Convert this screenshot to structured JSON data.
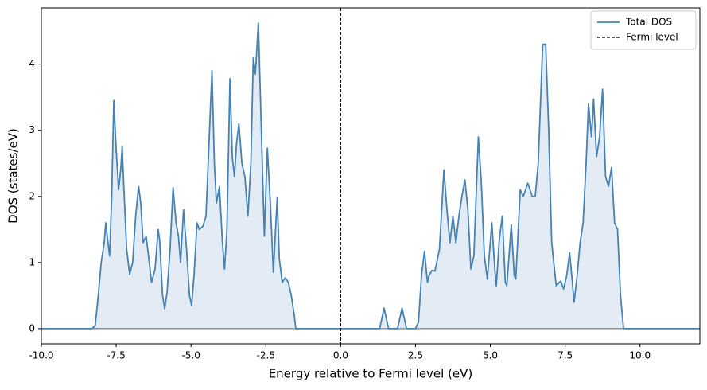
{
  "chart_data": {
    "type": "line",
    "xlabel": "Energy relative to Fermi level (eV)",
    "ylabel": "DOS (states/eV)",
    "x": [
      -10,
      -8.3,
      -8.2,
      -8.1,
      -8.0,
      -7.9,
      -7.85,
      -7.8,
      -7.72,
      -7.65,
      -7.58,
      -7.5,
      -7.42,
      -7.35,
      -7.3,
      -7.25,
      -7.15,
      -7.05,
      -6.95,
      -6.85,
      -6.75,
      -6.68,
      -6.6,
      -6.5,
      -6.42,
      -6.32,
      -6.2,
      -6.1,
      -6.05,
      -5.95,
      -5.88,
      -5.8,
      -5.7,
      -5.6,
      -5.5,
      -5.42,
      -5.35,
      -5.25,
      -5.15,
      -5.05,
      -4.98,
      -4.9,
      -4.8,
      -4.72,
      -4.6,
      -4.5,
      -4.4,
      -4.3,
      -4.22,
      -4.15,
      -4.05,
      -3.95,
      -3.88,
      -3.8,
      -3.7,
      -3.62,
      -3.55,
      -3.48,
      -3.4,
      -3.3,
      -3.2,
      -3.1,
      -3.0,
      -2.92,
      -2.85,
      -2.75,
      -2.65,
      -2.55,
      -2.45,
      -2.35,
      -2.25,
      -2.12,
      -2.05,
      -1.95,
      -1.85,
      -1.75,
      -1.65,
      -1.55,
      -1.5,
      1.3,
      1.45,
      1.6,
      1.9,
      2.05,
      2.2,
      2.5,
      2.6,
      2.7,
      2.8,
      2.9,
      2.95,
      3.05,
      3.15,
      3.3,
      3.45,
      3.55,
      3.65,
      3.75,
      3.85,
      3.95,
      4.05,
      4.15,
      4.25,
      4.35,
      4.45,
      4.6,
      4.7,
      4.8,
      4.9,
      5.05,
      5.15,
      5.2,
      5.3,
      5.4,
      5.5,
      5.55,
      5.7,
      5.8,
      5.85,
      6.0,
      6.1,
      6.25,
      6.4,
      6.5,
      6.6,
      6.75,
      6.85,
      6.95,
      7.05,
      7.2,
      7.35,
      7.45,
      7.55,
      7.65,
      7.7,
      7.8,
      7.9,
      8.0,
      8.1,
      8.2,
      8.28,
      8.38,
      8.45,
      8.55,
      8.65,
      8.75,
      8.85,
      8.95,
      9.05,
      9.15,
      9.25,
      9.35,
      9.45,
      12
    ],
    "series": [
      {
        "name": "Total DOS",
        "color": "#4682b4",
        "fill": true,
        "values": [
          0,
          0,
          0.05,
          0.5,
          1.0,
          1.3,
          1.6,
          1.4,
          1.1,
          2.0,
          3.45,
          2.7,
          2.1,
          2.4,
          2.75,
          2.2,
          1.2,
          0.82,
          1.0,
          1.7,
          2.15,
          1.9,
          1.3,
          1.4,
          1.1,
          0.7,
          0.9,
          1.5,
          1.35,
          0.5,
          0.3,
          0.55,
          1.2,
          2.13,
          1.6,
          1.4,
          1.0,
          1.8,
          1.2,
          0.5,
          0.35,
          0.8,
          1.6,
          1.5,
          1.55,
          1.7,
          2.8,
          3.9,
          2.5,
          1.9,
          2.15,
          1.3,
          0.9,
          1.5,
          3.78,
          2.6,
          2.3,
          2.8,
          3.1,
          2.5,
          2.3,
          1.7,
          2.5,
          4.1,
          3.85,
          4.62,
          3.0,
          1.4,
          2.73,
          1.9,
          0.85,
          1.98,
          1.05,
          0.7,
          0.77,
          0.7,
          0.5,
          0.2,
          0,
          0,
          0.31,
          0,
          0,
          0.31,
          0,
          0,
          0.1,
          0.8,
          1.17,
          0.7,
          0.8,
          0.88,
          0.87,
          1.2,
          2.4,
          1.8,
          1.3,
          1.7,
          1.3,
          1.7,
          2.0,
          2.25,
          1.8,
          0.9,
          1.1,
          2.9,
          2.2,
          1.1,
          0.75,
          1.6,
          0.9,
          0.65,
          1.35,
          1.7,
          0.7,
          0.65,
          1.57,
          0.8,
          0.75,
          2.1,
          2.0,
          2.2,
          2.0,
          2.0,
          2.5,
          4.3,
          4.3,
          3.0,
          1.3,
          0.65,
          0.72,
          0.6,
          0.8,
          1.15,
          0.9,
          0.4,
          0.8,
          1.3,
          1.6,
          2.5,
          3.4,
          2.9,
          3.47,
          2.6,
          2.9,
          3.62,
          2.3,
          2.15,
          2.44,
          1.6,
          1.5,
          0.5,
          0,
          0
        ]
      }
    ],
    "vlines": [
      {
        "name": "Fermi level",
        "x": 0,
        "color": "#000000",
        "dashed": true
      }
    ],
    "xlim": [
      -10,
      12
    ],
    "ylim": [
      -0.23,
      4.85
    ],
    "xticks": [
      {
        "value": -10,
        "label": "-10.0"
      },
      -7.5,
      {
        "value": -5,
        "label": "-5.0"
      },
      -2.5,
      {
        "value": 0,
        "label": "0.0"
      },
      2.5,
      {
        "value": 5,
        "label": "5.0"
      },
      7.5,
      {
        "value": 10,
        "label": "10.0"
      }
    ],
    "yticks": [
      0,
      1,
      2,
      3,
      4
    ],
    "legend": "upper right"
  }
}
